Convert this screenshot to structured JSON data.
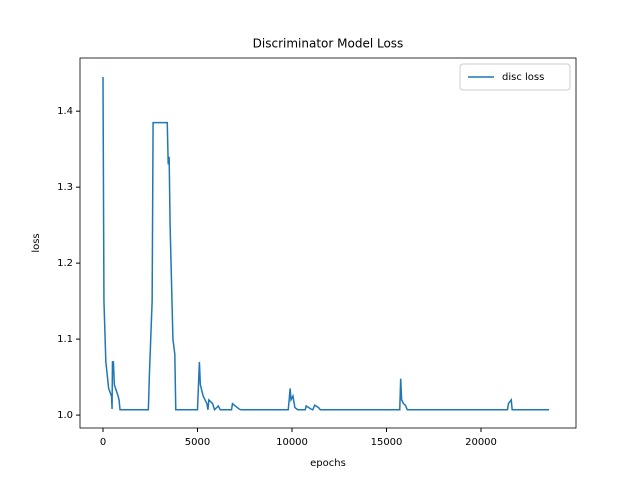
{
  "chart_data": {
    "type": "line",
    "title": "Discriminator Model Loss",
    "x_label": "epochs",
    "y_label": "loss",
    "x": [
      0,
      50,
      150,
      300,
      450,
      480,
      500,
      550,
      600,
      800,
      850,
      900,
      2400,
      2450,
      2600,
      2650,
      3400,
      3450,
      3500,
      3550,
      3700,
      3800,
      3850,
      5000,
      5100,
      5150,
      5300,
      5500,
      5550,
      5600,
      5800,
      5900,
      6100,
      6200,
      6800,
      6850,
      7000,
      7200,
      7300,
      9800,
      9850,
      9900,
      9950,
      10050,
      10150,
      10300,
      10700,
      10750,
      11000,
      11100,
      11200,
      11400,
      11500,
      15700,
      15750,
      15800,
      15900,
      16000,
      16100,
      21400,
      21450,
      21600,
      21650,
      23600
    ],
    "series": [
      {
        "name": "disc loss",
        "color": "#1f77b4",
        "values": [
          1.445,
          1.15,
          1.07,
          1.035,
          1.025,
          1.008,
          1.07,
          1.07,
          1.04,
          1.025,
          1.02,
          1.007,
          1.007,
          1.05,
          1.15,
          1.385,
          1.385,
          1.33,
          1.34,
          1.25,
          1.1,
          1.08,
          1.007,
          1.007,
          1.07,
          1.04,
          1.025,
          1.015,
          1.007,
          1.02,
          1.015,
          1.007,
          1.012,
          1.007,
          1.007,
          1.015,
          1.012,
          1.008,
          1.007,
          1.007,
          1.02,
          1.035,
          1.02,
          1.025,
          1.01,
          1.007,
          1.007,
          1.012,
          1.008,
          1.007,
          1.013,
          1.01,
          1.007,
          1.007,
          1.048,
          1.02,
          1.015,
          1.013,
          1.007,
          1.007,
          1.015,
          1.02,
          1.007,
          1.007
        ]
      }
    ],
    "xlim": [
      -1217,
      25026
    ],
    "ylim": [
      0.983,
      1.47
    ],
    "xticks": [
      0,
      5000,
      10000,
      15000,
      20000
    ],
    "yticks": [
      {
        "value": 1.0,
        "label": "1.0"
      },
      1.1,
      1.2,
      1.3,
      1.4
    ],
    "legend": "upper right"
  }
}
